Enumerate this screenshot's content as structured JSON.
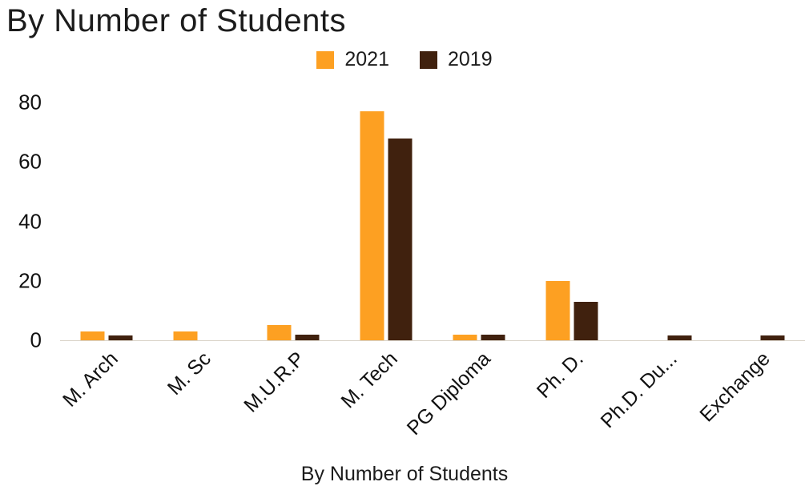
{
  "title": "By Number of Students",
  "legend": {
    "items": [
      {
        "label": "2021",
        "color": "#FDA022"
      },
      {
        "label": "2019",
        "color": "#40210E"
      }
    ]
  },
  "chart_data": {
    "type": "bar",
    "title": "By Number of Students",
    "xlabel": "By Number of Students",
    "ylabel": "",
    "categories": [
      "M. Arch",
      "M. Sc",
      "M.U.R.P",
      "M. Tech",
      "PG Diploma",
      "Ph. D.",
      "Ph.D. Du...",
      "Exchange"
    ],
    "series": [
      {
        "name": "2021",
        "color": "#FDA022",
        "values": [
          3,
          3,
          5,
          77,
          2,
          20,
          0,
          0
        ]
      },
      {
        "name": "2019",
        "color": "#40210E",
        "values": [
          1.5,
          0,
          2,
          68,
          2,
          13,
          1.5,
          1.5
        ]
      }
    ],
    "ylim": [
      0,
      80
    ],
    "yticks": [
      0,
      20,
      40,
      60,
      80
    ],
    "grid": false,
    "legend_position": "top"
  }
}
